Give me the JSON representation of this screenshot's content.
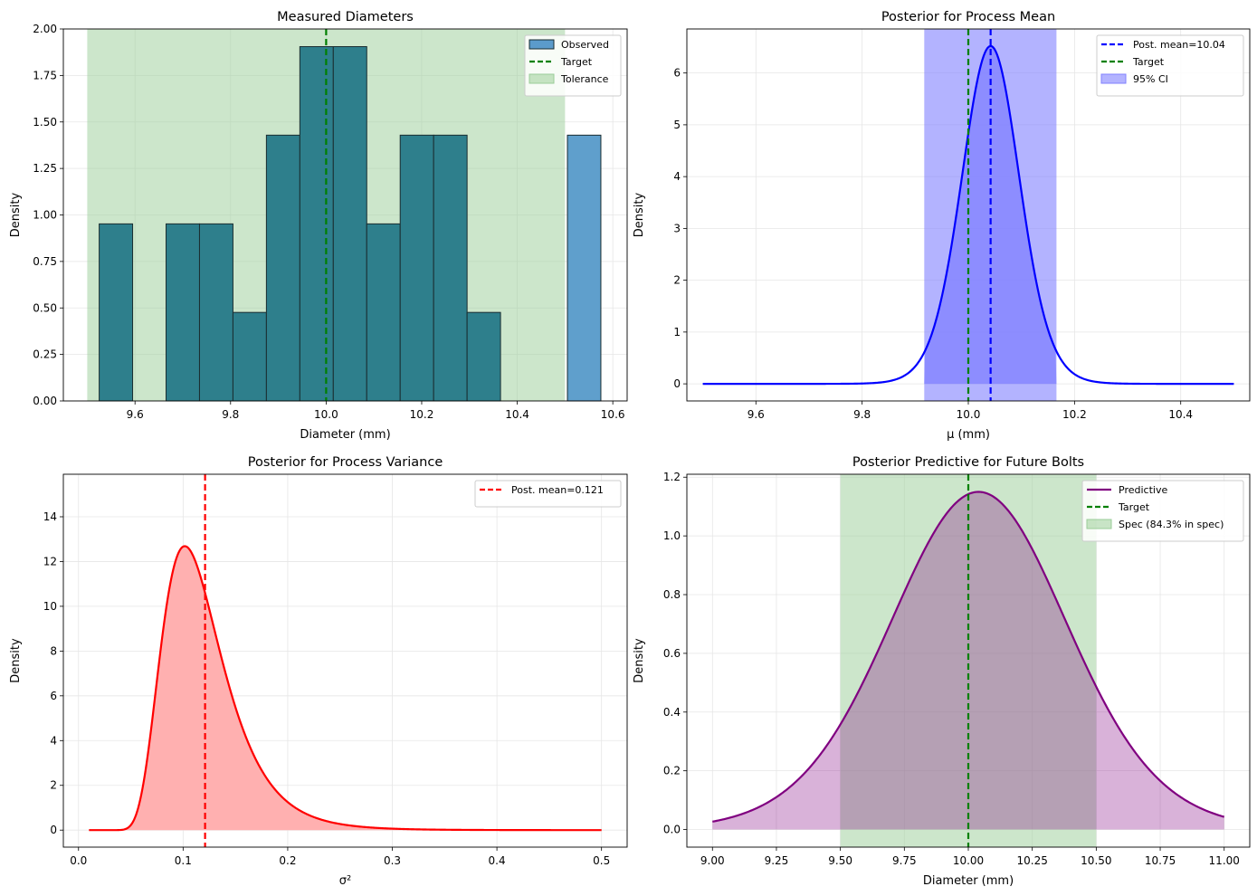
{
  "colors": {
    "hist": "#2E7F8C",
    "observed_legend": "#5B9BCB",
    "outlier_bar": "#5F9FCC",
    "tolerance": "#9ACD98",
    "target": "#008000",
    "blue": "#0000FF",
    "ci": "#8080FF",
    "red": "#FF0000",
    "red_fill": "#FFB0B0",
    "purple": "#800080",
    "purple_fill": "#D5AED6",
    "grid": "#E6E6E6"
  },
  "chart_data": [
    {
      "id": "hist",
      "type": "bar",
      "title": "Measured Diameters",
      "xlabel": "Diameter (mm)",
      "ylabel": "Density",
      "xlim": [
        9.45,
        10.63
      ],
      "ylim": [
        0,
        2.0
      ],
      "xticks": [
        9.6,
        9.8,
        10.0,
        10.2,
        10.4,
        10.6
      ],
      "xtick_labels": [
        "9.6",
        "9.8",
        "10.0",
        "10.2",
        "10.4",
        "10.6"
      ],
      "yticks": [
        0,
        0.25,
        0.5,
        0.75,
        1.0,
        1.25,
        1.5,
        1.75,
        2.0
      ],
      "ytick_labels": [
        "0.00",
        "0.25",
        "0.50",
        "0.75",
        "1.00",
        "1.25",
        "1.50",
        "1.75",
        "2.00"
      ],
      "bin_width": 0.07,
      "bins": [
        {
          "left": 9.525,
          "value": 0.952
        },
        {
          "left": 9.595,
          "value": 0
        },
        {
          "left": 9.665,
          "value": 0.952
        },
        {
          "left": 9.735,
          "value": 0.952
        },
        {
          "left": 9.805,
          "value": 0.476
        },
        {
          "left": 9.875,
          "value": 1.429
        },
        {
          "left": 9.945,
          "value": 1.905
        },
        {
          "left": 10.015,
          "value": 1.905
        },
        {
          "left": 10.085,
          "value": 0.952
        },
        {
          "left": 10.155,
          "value": 1.429
        },
        {
          "left": 10.225,
          "value": 1.429
        },
        {
          "left": 10.295,
          "value": 0.476
        },
        {
          "left": 10.365,
          "value": 0
        },
        {
          "left": 10.435,
          "value": 0
        },
        {
          "left": 10.505,
          "value": 1.429
        }
      ],
      "tolerance": [
        9.5,
        10.5
      ],
      "target": 10.0,
      "legend": [
        "Observed",
        "Target",
        "Tolerance"
      ]
    },
    {
      "id": "mean",
      "type": "line",
      "title": "Posterior for Process Mean",
      "xlabel": "μ (mm)",
      "ylabel": "Density",
      "xlim": [
        9.47,
        10.53
      ],
      "ylim": [
        -0.33,
        6.85
      ],
      "xticks": [
        9.6,
        9.8,
        10.0,
        10.2,
        10.4
      ],
      "xtick_labels": [
        "9.6",
        "9.8",
        "10.0",
        "10.2",
        "10.4"
      ],
      "yticks": [
        0,
        1,
        2,
        3,
        4,
        5,
        6
      ],
      "ytick_labels": [
        "0",
        "1",
        "2",
        "3",
        "4",
        "5",
        "6"
      ],
      "x_range": [
        9.5,
        10.5
      ],
      "posterior_mean": 10.042,
      "peak_density": 6.52,
      "scale": 0.0553,
      "dof": 18,
      "ci": [
        9.917,
        10.166
      ],
      "target": 10.0,
      "legend": [
        "Post. mean=10.04",
        "Target",
        "95% CI"
      ]
    },
    {
      "id": "var",
      "type": "area",
      "title": "Posterior for Process Variance",
      "xlabel": "σ²",
      "ylabel": "Density",
      "xlim": [
        -0.0145,
        0.5245
      ],
      "ylim": [
        -0.76,
        15.9
      ],
      "xticks": [
        0.0,
        0.1,
        0.2,
        0.3,
        0.4,
        0.5
      ],
      "xtick_labels": [
        "0.0",
        "0.1",
        "0.2",
        "0.3",
        "0.4",
        "0.5"
      ],
      "yticks": [
        0,
        2,
        4,
        6,
        8,
        10,
        12,
        14
      ],
      "ytick_labels": [
        "0",
        "2",
        "4",
        "6",
        "8",
        "10",
        "12",
        "14"
      ],
      "x_range": [
        0.01,
        0.5
      ],
      "posterior_mean": 0.121,
      "ig_shape": 11.5,
      "ig_scale": 1.27,
      "legend": [
        "Post. mean=0.121"
      ]
    },
    {
      "id": "pred",
      "type": "area",
      "title": "Posterior Predictive for Future Bolts",
      "xlabel": "Diameter (mm)",
      "ylabel": "Density",
      "xlim": [
        8.9,
        11.1
      ],
      "ylim": [
        -0.06,
        1.21
      ],
      "xticks": [
        9.0,
        9.25,
        9.5,
        9.75,
        10.0,
        10.25,
        10.5,
        10.75,
        11.0
      ],
      "xtick_labels": [
        "9.00",
        "9.25",
        "9.50",
        "9.75",
        "10.00",
        "10.25",
        "10.50",
        "10.75",
        "11.00"
      ],
      "yticks": [
        0,
        0.2,
        0.4,
        0.6,
        0.8,
        1.0,
        1.2
      ],
      "ytick_labels": [
        "0.0",
        "0.2",
        "0.4",
        "0.6",
        "0.8",
        "1.0",
        "1.2"
      ],
      "x_range": [
        9.0,
        11.0
      ],
      "center": 10.04,
      "peak_density": 1.15,
      "scale": 0.352,
      "dof": 18,
      "spec": [
        9.5,
        10.5
      ],
      "target": 10.0,
      "legend": [
        "Predictive",
        "Target",
        "Spec (84.3% in spec)"
      ]
    }
  ]
}
